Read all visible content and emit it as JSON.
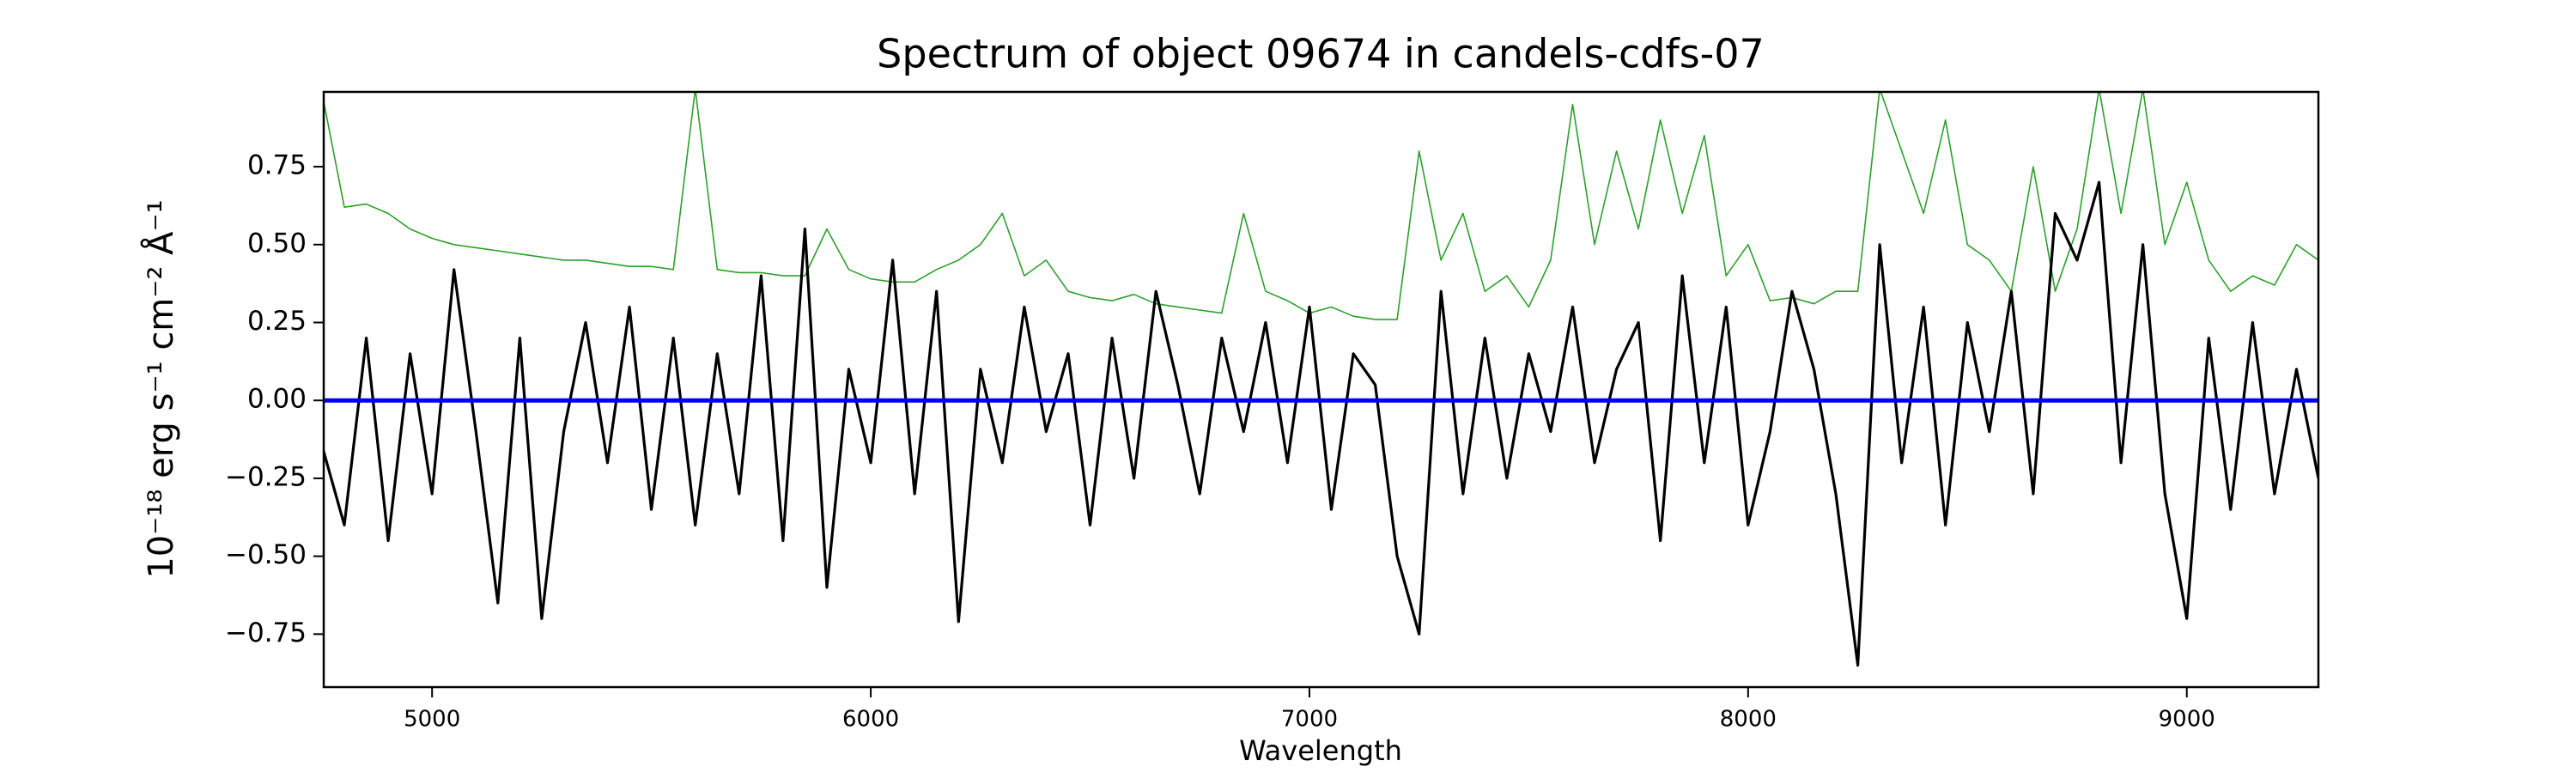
{
  "chart_data": {
    "type": "line",
    "title": "Spectrum of object 09674 in candels-cdfs-07",
    "xlabel": "Wavelength",
    "ylabel": "10⁻¹⁸ erg s⁻¹ cm⁻² Å⁻¹",
    "x": [
      4750,
      4800,
      4850,
      4900,
      4950,
      5000,
      5050,
      5100,
      5150,
      5200,
      5250,
      5300,
      5350,
      5400,
      5450,
      5500,
      5550,
      5600,
      5650,
      5700,
      5750,
      5800,
      5850,
      5900,
      5950,
      6000,
      6050,
      6100,
      6150,
      6200,
      6250,
      6300,
      6350,
      6400,
      6450,
      6500,
      6550,
      6600,
      6650,
      6700,
      6750,
      6800,
      6850,
      6900,
      6950,
      7000,
      7050,
      7100,
      7150,
      7200,
      7250,
      7300,
      7350,
      7400,
      7450,
      7500,
      7550,
      7600,
      7650,
      7700,
      7750,
      7800,
      7850,
      7900,
      7950,
      8000,
      8050,
      8100,
      8150,
      8200,
      8250,
      8300,
      8350,
      8400,
      8450,
      8500,
      8550,
      8600,
      8650,
      8700,
      8750,
      8800,
      8850,
      8900,
      8950,
      9000,
      9050,
      9100,
      9150,
      9200,
      9250,
      9300
    ],
    "series": [
      {
        "color": "#2ca02c",
        "values": [
          0.98,
          0.62,
          0.63,
          0.6,
          0.55,
          0.52,
          0.5,
          0.49,
          0.48,
          0.47,
          0.46,
          0.45,
          0.45,
          0.44,
          0.43,
          0.43,
          0.42,
          1.0,
          0.42,
          0.41,
          0.41,
          0.4,
          0.4,
          0.55,
          0.42,
          0.39,
          0.38,
          0.38,
          0.42,
          0.45,
          0.5,
          0.6,
          0.4,
          0.45,
          0.35,
          0.33,
          0.32,
          0.34,
          0.31,
          0.3,
          0.29,
          0.28,
          0.6,
          0.35,
          0.32,
          0.28,
          0.3,
          0.27,
          0.26,
          0.26,
          0.8,
          0.45,
          0.6,
          0.35,
          0.4,
          0.3,
          0.45,
          0.95,
          0.5,
          0.8,
          0.55,
          0.9,
          0.6,
          0.85,
          0.4,
          0.5,
          0.32,
          0.33,
          0.31,
          0.35,
          0.35,
          1.0,
          0.8,
          0.6,
          0.9,
          0.5,
          0.45,
          0.35,
          0.75,
          0.35,
          0.55,
          1.0,
          0.6,
          1.0,
          0.5,
          0.7,
          0.45,
          0.35,
          0.4,
          0.37,
          0.5,
          0.45
        ]
      },
      {
        "color": "#000000",
        "values": [
          -0.15,
          -0.4,
          0.2,
          -0.45,
          0.15,
          -0.3,
          0.42,
          -0.1,
          -0.65,
          0.2,
          -0.7,
          -0.1,
          0.25,
          -0.2,
          0.3,
          -0.35,
          0.2,
          -0.4,
          0.15,
          -0.3,
          0.4,
          -0.45,
          0.55,
          -0.6,
          0.1,
          -0.2,
          0.45,
          -0.3,
          0.35,
          -0.71,
          0.1,
          -0.2,
          0.3,
          -0.1,
          0.15,
          -0.4,
          0.2,
          -0.25,
          0.35,
          0.05,
          -0.3,
          0.2,
          -0.1,
          0.25,
          -0.2,
          0.3,
          -0.35,
          0.15,
          0.05,
          -0.5,
          -0.75,
          0.35,
          -0.3,
          0.2,
          -0.25,
          0.15,
          -0.1,
          0.3,
          -0.2,
          0.1,
          0.25,
          -0.45,
          0.4,
          -0.2,
          0.3,
          -0.4,
          -0.1,
          0.35,
          0.1,
          -0.3,
          -0.85,
          0.5,
          -0.2,
          0.3,
          -0.4,
          0.25,
          -0.1,
          0.35,
          -0.3,
          0.6,
          0.45,
          0.7,
          -0.2,
          0.5,
          -0.3,
          -0.7,
          0.2,
          -0.35,
          0.25,
          -0.3,
          0.1,
          -0.25
        ]
      },
      {
        "color": "#0000ff",
        "x": [
          4750,
          9300
        ],
        "values": [
          0,
          0
        ]
      }
    ],
    "xlim": [
      4753,
      9300
    ],
    "ylim": [
      -0.92,
      0.99
    ],
    "xticks": [
      5000,
      6000,
      7000,
      8000,
      9000
    ],
    "yticks": [
      {
        "value": -0.75,
        "label": "−0.75"
      },
      {
        "value": -0.5,
        "label": "−0.50"
      },
      {
        "value": -0.25,
        "label": "−0.25"
      },
      {
        "value": 0,
        "label": "0.00"
      },
      {
        "value": 0.25,
        "label": "0.25"
      },
      {
        "value": 0.5,
        "label": "0.50"
      },
      {
        "value": 0.75,
        "label": "0.75"
      }
    ]
  }
}
